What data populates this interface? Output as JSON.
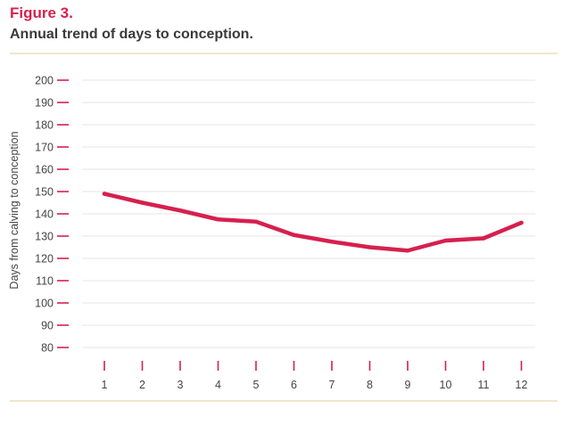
{
  "figure": {
    "label": "Figure 3.",
    "title": "Annual trend of days to conception."
  },
  "colors": {
    "accent": "#d6204f",
    "tick_text": "#444444",
    "grid": "#e6e6e6",
    "rule": "#efe6cc"
  },
  "chart_data": {
    "type": "line",
    "title": "",
    "xlabel": "",
    "ylabel": "Days from calving to conception",
    "x": [
      1,
      2,
      3,
      4,
      5,
      6,
      7,
      8,
      9,
      10,
      11,
      12
    ],
    "series": [
      {
        "values": [
          149,
          145,
          141.5,
          137.5,
          136.5,
          130.5,
          127.5,
          125,
          123.5,
          128,
          129,
          136
        ]
      }
    ],
    "yticks": [
      80,
      90,
      100,
      110,
      120,
      130,
      140,
      150,
      160,
      170,
      180,
      190,
      200
    ],
    "ylim": [
      80,
      200
    ],
    "xlim": [
      1,
      12
    ],
    "grid": true,
    "legend": "none"
  }
}
